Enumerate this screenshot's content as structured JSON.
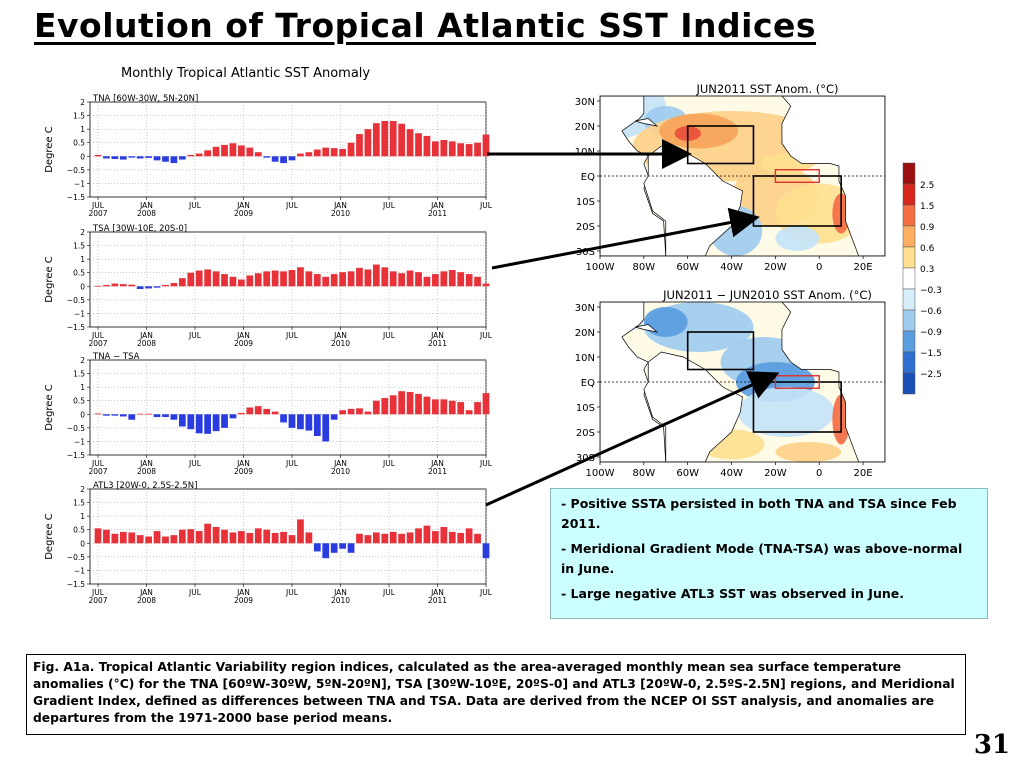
{
  "slide": {
    "title": "Evolution of Tropical Atlantic SST Indices",
    "page_number": "31"
  },
  "figure_title": "Monthly Tropical Atlantic SST Anomaly",
  "time_axis": {
    "labels": [
      {
        "line1": "JUL",
        "line2": "2007"
      },
      {
        "line1": "JAN",
        "line2": "2008"
      },
      {
        "line1": "JUL",
        "line2": ""
      },
      {
        "line1": "JAN",
        "line2": "2009"
      },
      {
        "line1": "JUL",
        "line2": ""
      },
      {
        "line1": "JAN",
        "line2": "2010"
      },
      {
        "line1": "JUL",
        "line2": ""
      },
      {
        "line1": "JAN",
        "line2": "2011"
      },
      {
        "line1": "JUL",
        "line2": ""
      }
    ]
  },
  "chart_data": [
    {
      "type": "bar",
      "title": "TNA [60W-30W, 5N-20N]",
      "ylabel": "Degree C",
      "ylim": [
        -1.5,
        2
      ],
      "yticks": [
        "2",
        "1.5",
        "1",
        "0.5",
        "0",
        "−0.5",
        "−1",
        "−1.5"
      ],
      "x_start": "JUL 2007",
      "values": [
        0.05,
        -0.08,
        -0.1,
        -0.12,
        -0.05,
        -0.08,
        -0.06,
        -0.15,
        -0.2,
        -0.25,
        -0.12,
        0.05,
        0.1,
        0.22,
        0.35,
        0.42,
        0.48,
        0.4,
        0.32,
        0.15,
        -0.05,
        -0.2,
        -0.25,
        -0.15,
        0.1,
        0.15,
        0.25,
        0.32,
        0.3,
        0.27,
        0.5,
        0.82,
        1.0,
        1.22,
        1.3,
        1.3,
        1.2,
        1.0,
        0.85,
        0.75,
        0.55,
        0.6,
        0.55,
        0.48,
        0.45,
        0.5,
        0.8
      ]
    },
    {
      "type": "bar",
      "title": "TSA [30W-10E, 20S-0]",
      "ylabel": "Degree C",
      "ylim": [
        -1.5,
        2
      ],
      "yticks": [
        "2",
        "1.5",
        "1",
        "0.5",
        "0",
        "−0.5",
        "−1",
        "−1.5"
      ],
      "x_start": "JUL 2007",
      "values": [
        0.02,
        0.05,
        0.1,
        0.08,
        0.06,
        -0.1,
        -0.08,
        -0.05,
        0.05,
        0.12,
        0.3,
        0.5,
        0.58,
        0.62,
        0.55,
        0.45,
        0.35,
        0.25,
        0.4,
        0.48,
        0.55,
        0.58,
        0.55,
        0.6,
        0.7,
        0.55,
        0.45,
        0.35,
        0.45,
        0.52,
        0.55,
        0.68,
        0.62,
        0.8,
        0.7,
        0.55,
        0.48,
        0.58,
        0.52,
        0.35,
        0.45,
        0.55,
        0.6,
        0.52,
        0.45,
        0.35,
        0.1
      ]
    },
    {
      "type": "bar",
      "title": "TNA − TSA",
      "ylabel": "Degree C",
      "ylim": [
        -1.5,
        2
      ],
      "yticks": [
        "2",
        "1.5",
        "1",
        "0.5",
        "0",
        "−0.5",
        "−1",
        "−1.5"
      ],
      "x_start": "JUL 2007",
      "values": [
        0.03,
        -0.05,
        -0.05,
        -0.08,
        -0.2,
        0.02,
        0.02,
        -0.1,
        -0.1,
        -0.2,
        -0.45,
        -0.55,
        -0.7,
        -0.72,
        -0.62,
        -0.5,
        -0.15,
        0.05,
        0.25,
        0.3,
        0.2,
        0.1,
        -0.3,
        -0.5,
        -0.55,
        -0.6,
        -0.8,
        -1.0,
        -0.2,
        0.15,
        0.2,
        0.22,
        0.1,
        0.5,
        0.6,
        0.7,
        0.85,
        0.82,
        0.75,
        0.65,
        0.55,
        0.55,
        0.5,
        0.45,
        0.15,
        0.45,
        0.78
      ]
    },
    {
      "type": "bar",
      "title": "ATL3 [20W-0, 2.5S-2.5N]",
      "ylabel": "Degree C",
      "ylim": [
        -1.5,
        2
      ],
      "yticks": [
        "2",
        "1.5",
        "1",
        "0.5",
        "0",
        "−0.5",
        "−1",
        "−1.5"
      ],
      "x_start": "JUL 2007",
      "values": [
        0.55,
        0.5,
        0.35,
        0.42,
        0.4,
        0.3,
        0.25,
        0.45,
        0.25,
        0.3,
        0.5,
        0.52,
        0.45,
        0.72,
        0.6,
        0.5,
        0.4,
        0.45,
        0.38,
        0.55,
        0.5,
        0.38,
        0.42,
        0.3,
        0.88,
        0.4,
        -0.3,
        -0.55,
        -0.35,
        -0.2,
        -0.35,
        0.35,
        0.3,
        0.4,
        0.35,
        0.42,
        0.35,
        0.4,
        0.55,
        0.65,
        0.45,
        0.6,
        0.42,
        0.38,
        0.55,
        0.35,
        -0.55
      ]
    }
  ],
  "maps": [
    {
      "title": "JUN2011 SST Anom. (°C)",
      "lat_labels": [
        "30N",
        "20N",
        "10N",
        "EQ",
        "10S",
        "20S",
        "30S"
      ],
      "lon_labels": [
        "100W",
        "80W",
        "60W",
        "40W",
        "20W",
        "0",
        "20E"
      ]
    },
    {
      "title": "JUN2011 − JUN2010 SST Anom. (°C)",
      "lat_labels": [
        "30N",
        "20N",
        "10N",
        "EQ",
        "10S",
        "20S",
        "30S"
      ],
      "lon_labels": [
        "100W",
        "80W",
        "60W",
        "40W",
        "20W",
        "0",
        "20E"
      ]
    }
  ],
  "colorbar": {
    "labels": [
      "2.5",
      "1.5",
      "0.9",
      "0.6",
      "0.3",
      "−0.3",
      "−0.6",
      "−0.9",
      "−1.5",
      "−2.5"
    ],
    "colors": [
      "#9b0f0f",
      "#d7261e",
      "#f46d43",
      "#fdae61",
      "#fee090",
      "#ffffff",
      "#d6eef9",
      "#9fcbef",
      "#5a9ee0",
      "#2f6fd0",
      "#1a4fb5"
    ]
  },
  "colors": {
    "positive_bar": "#e8323a",
    "negative_bar": "#2a3be0",
    "bullet_bg": "#ccffff"
  },
  "bullets": [
    {
      "dash": "- ",
      "text": "Positive SSTA persisted in both TNA and TSA since Feb 2011."
    },
    {
      "dash": "",
      "text": "- Meridional Gradient Mode (TNA-TSA) was above-normal in June."
    },
    {
      "dash": "- ",
      "text": "Large negative ATL3 SST was observed in June."
    }
  ],
  "caption": "Fig. A1a. Tropical Atlantic Variability region indices, calculated as the area-averaged monthly mean sea surface temperature anomalies (°C) for the TNA [60ºW-30ºW, 5ºN-20ºN], TSA [30ºW-10ºE, 20ºS-0] and ATL3 [20ºW-0, 2.5ºS-2.5N] regions, and Meridional Gradient Index, defined as differences between TNA and TSA. Data are derived from the NCEP OI SST analysis, and anomalies are departures from the 1971-2000 base period means."
}
